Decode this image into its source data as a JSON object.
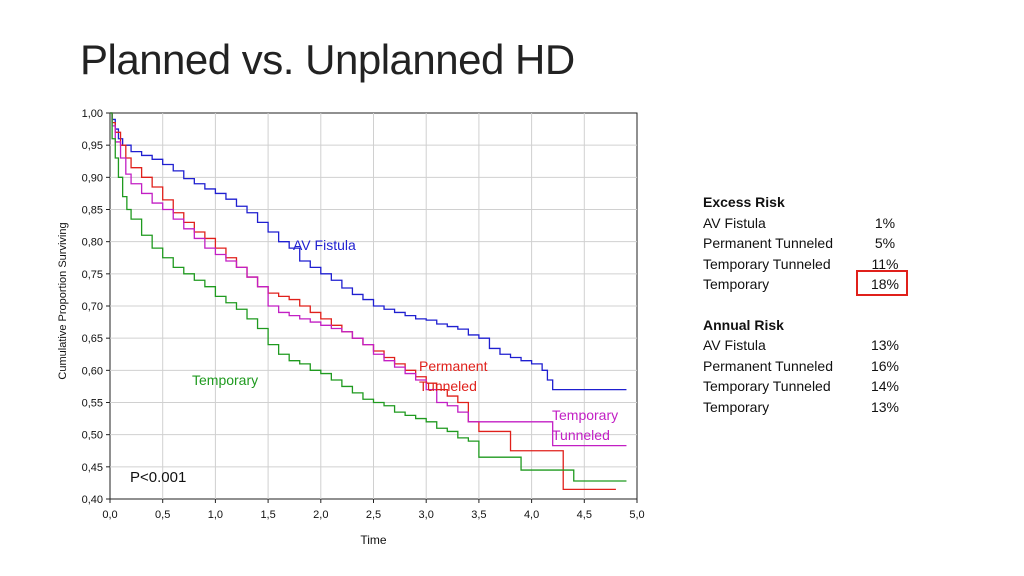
{
  "slide": {
    "title": "Planned vs. Unplanned HD"
  },
  "chart_data": {
    "type": "line",
    "step": true,
    "xlabel": "Time",
    "ylabel": "Cumulative Proportion Surviving",
    "xlim": [
      0,
      5
    ],
    "ylim": [
      0.4,
      1.0
    ],
    "xticks": [
      "0,0",
      "0,5",
      "1,0",
      "1,5",
      "2,0",
      "2,5",
      "3,0",
      "3,5",
      "4,0",
      "4,5",
      "5,0"
    ],
    "yticks": [
      "0,40",
      "0,45",
      "0,50",
      "0,55",
      "0,60",
      "0,65",
      "0,70",
      "0,75",
      "0,80",
      "0,85",
      "0,90",
      "0,95",
      "1,00"
    ],
    "grid": true,
    "annotation": "P<0.001",
    "series": [
      {
        "name": "AV Fistula",
        "label_lines": [
          "AV Fistula"
        ],
        "color": "#1f1fd0",
        "x": [
          0,
          0.02,
          0.05,
          0.08,
          0.12,
          0.2,
          0.3,
          0.4,
          0.5,
          0.6,
          0.7,
          0.8,
          0.9,
          1.0,
          1.1,
          1.2,
          1.3,
          1.4,
          1.5,
          1.6,
          1.7,
          1.8,
          1.9,
          2.0,
          2.1,
          2.2,
          2.3,
          2.4,
          2.5,
          2.6,
          2.7,
          2.8,
          2.9,
          3.0,
          3.1,
          3.2,
          3.3,
          3.4,
          3.5,
          3.6,
          3.7,
          3.8,
          3.9,
          4.0,
          4.1,
          4.15,
          4.2,
          4.3,
          4.5,
          4.7,
          4.9
        ],
        "y": [
          1.0,
          0.99,
          0.975,
          0.96,
          0.95,
          0.94,
          0.934,
          0.928,
          0.92,
          0.91,
          0.898,
          0.89,
          0.882,
          0.875,
          0.866,
          0.855,
          0.845,
          0.83,
          0.815,
          0.8,
          0.79,
          0.77,
          0.76,
          0.75,
          0.74,
          0.728,
          0.718,
          0.71,
          0.7,
          0.695,
          0.69,
          0.685,
          0.68,
          0.678,
          0.672,
          0.668,
          0.664,
          0.655,
          0.65,
          0.634,
          0.625,
          0.62,
          0.615,
          0.61,
          0.6,
          0.585,
          0.57,
          0.57,
          0.57,
          0.57,
          0.57
        ]
      },
      {
        "name": "Permanent Tunneled",
        "label_lines": [
          "Permanent",
          "Tunneled"
        ],
        "color": "#e0201b",
        "x": [
          0,
          0.02,
          0.05,
          0.1,
          0.15,
          0.2,
          0.3,
          0.4,
          0.5,
          0.6,
          0.7,
          0.8,
          0.9,
          1.0,
          1.1,
          1.2,
          1.3,
          1.4,
          1.5,
          1.6,
          1.7,
          1.8,
          1.9,
          2.0,
          2.1,
          2.2,
          2.3,
          2.4,
          2.5,
          2.6,
          2.7,
          2.8,
          2.9,
          3.0,
          3.1,
          3.2,
          3.3,
          3.4,
          3.5,
          3.6,
          3.7,
          3.8,
          3.9,
          4.0,
          4.1,
          4.2,
          4.3,
          4.4,
          4.5,
          4.6,
          4.8
        ],
        "y": [
          1.0,
          0.985,
          0.97,
          0.95,
          0.93,
          0.915,
          0.9,
          0.885,
          0.865,
          0.845,
          0.83,
          0.815,
          0.805,
          0.79,
          0.775,
          0.76,
          0.745,
          0.73,
          0.72,
          0.715,
          0.71,
          0.7,
          0.69,
          0.68,
          0.67,
          0.66,
          0.65,
          0.64,
          0.63,
          0.62,
          0.61,
          0.6,
          0.59,
          0.58,
          0.57,
          0.56,
          0.55,
          0.52,
          0.505,
          0.505,
          0.505,
          0.475,
          0.475,
          0.475,
          0.475,
          0.475,
          0.415,
          0.415,
          0.415,
          0.415,
          0.415
        ]
      },
      {
        "name": "Temporary Tunneled",
        "label_lines": [
          "Temporary",
          "Tunneled"
        ],
        "color": "#c21fc4",
        "x": [
          0,
          0.02,
          0.05,
          0.1,
          0.15,
          0.2,
          0.3,
          0.4,
          0.5,
          0.6,
          0.7,
          0.8,
          0.9,
          1.0,
          1.1,
          1.2,
          1.3,
          1.4,
          1.5,
          1.6,
          1.7,
          1.8,
          1.9,
          2.0,
          2.1,
          2.2,
          2.3,
          2.4,
          2.5,
          2.6,
          2.7,
          2.8,
          2.9,
          3.0,
          3.1,
          3.2,
          3.3,
          3.4,
          3.5,
          3.6,
          3.7,
          3.8,
          3.9,
          4.0,
          4.1,
          4.2,
          4.3,
          4.5,
          4.7,
          4.9
        ],
        "y": [
          1.0,
          0.98,
          0.955,
          0.93,
          0.905,
          0.89,
          0.875,
          0.86,
          0.85,
          0.835,
          0.82,
          0.805,
          0.79,
          0.78,
          0.77,
          0.76,
          0.745,
          0.73,
          0.7,
          0.69,
          0.685,
          0.68,
          0.675,
          0.67,
          0.665,
          0.66,
          0.65,
          0.64,
          0.625,
          0.615,
          0.605,
          0.595,
          0.585,
          0.57,
          0.55,
          0.545,
          0.535,
          0.52,
          0.52,
          0.52,
          0.52,
          0.52,
          0.52,
          0.52,
          0.52,
          0.483,
          0.483,
          0.483,
          0.483,
          0.483
        ]
      },
      {
        "name": "Temporary",
        "label_lines": [
          "Temporary"
        ],
        "color": "#1f9a1f",
        "x": [
          0,
          0.02,
          0.05,
          0.08,
          0.12,
          0.16,
          0.2,
          0.3,
          0.4,
          0.5,
          0.6,
          0.7,
          0.8,
          0.9,
          1.0,
          1.1,
          1.2,
          1.3,
          1.4,
          1.5,
          1.6,
          1.7,
          1.8,
          1.9,
          2.0,
          2.1,
          2.2,
          2.3,
          2.4,
          2.5,
          2.6,
          2.7,
          2.8,
          2.9,
          3.0,
          3.1,
          3.2,
          3.3,
          3.4,
          3.5,
          3.6,
          3.7,
          3.8,
          3.9,
          4.0,
          4.1,
          4.2,
          4.3,
          4.4,
          4.5,
          4.7,
          4.9
        ],
        "y": [
          1.0,
          0.96,
          0.93,
          0.9,
          0.87,
          0.85,
          0.835,
          0.81,
          0.79,
          0.775,
          0.76,
          0.75,
          0.74,
          0.73,
          0.715,
          0.705,
          0.695,
          0.68,
          0.665,
          0.64,
          0.625,
          0.615,
          0.61,
          0.6,
          0.595,
          0.585,
          0.575,
          0.565,
          0.555,
          0.55,
          0.545,
          0.535,
          0.53,
          0.525,
          0.52,
          0.51,
          0.505,
          0.495,
          0.49,
          0.465,
          0.465,
          0.465,
          0.465,
          0.445,
          0.445,
          0.445,
          0.445,
          0.445,
          0.428,
          0.428,
          0.428,
          0.428
        ]
      }
    ]
  },
  "side_panel": {
    "excess_risk": {
      "heading": "Excess Risk",
      "rows": [
        {
          "label": "AV Fistula",
          "value": "1%"
        },
        {
          "label": "Permanent  Tunneled",
          "value": "5%"
        },
        {
          "label": "Temporary  Tunneled",
          "value": "11%"
        },
        {
          "label": "Temporary",
          "value": "18%"
        }
      ],
      "highlight_color": "#e0201b"
    },
    "annual_risk": {
      "heading": "Annual Risk",
      "rows": [
        {
          "label": "AV Fistula",
          "value": "13%"
        },
        {
          "label": "Permanent Tunneled",
          "value": "16%"
        },
        {
          "label": "Temporary Tunneled",
          "value": "14%"
        },
        {
          "label": "Temporary",
          "value": "13%"
        }
      ]
    }
  }
}
